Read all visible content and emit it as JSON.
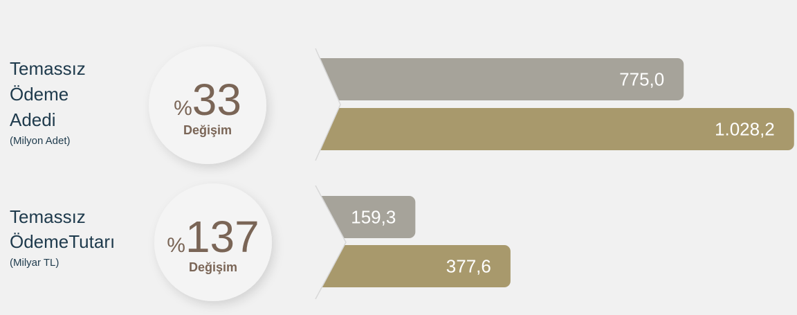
{
  "chart_data": [
    {
      "type": "bar",
      "orientation": "horizontal",
      "title": [
        "Temassız",
        "Ödeme",
        "Adedi"
      ],
      "subtitle": "(Milyon Adet)",
      "change_prefix": "%",
      "change": 33,
      "change_label": "Değişim",
      "values": [
        775.0,
        1028.2
      ],
      "value_labels": [
        "775,0",
        "1.028,2"
      ],
      "colors": [
        "#a6a39a",
        "#a8996c"
      ]
    },
    {
      "type": "bar",
      "orientation": "horizontal",
      "title": [
        "Temassız",
        "ÖdemeTutarı"
      ],
      "subtitle": "(Milyar TL)",
      "change_prefix": "%",
      "change": 137,
      "change_label": "Değişim",
      "values": [
        159.3,
        377.6
      ],
      "value_labels": [
        "159,3",
        "377,6"
      ],
      "colors": [
        "#a6a39a",
        "#a8996c"
      ]
    }
  ]
}
